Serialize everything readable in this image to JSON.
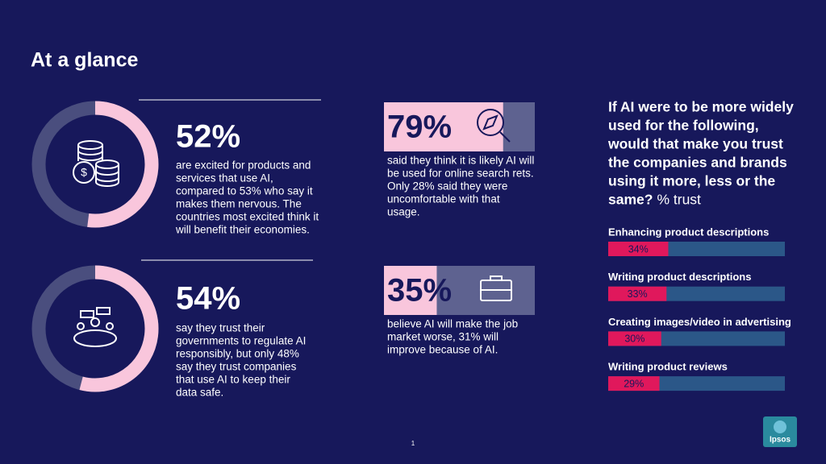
{
  "title": "At a glance",
  "donut_stats": [
    {
      "value": 52,
      "label": "52%",
      "lines": [
        "are excited for products and",
        "services that use AI,",
        "compared to 53% who say it",
        "makes them nervous. The",
        "countries most excited think it",
        "will benefit their economies."
      ]
    },
    {
      "value": 54,
      "label": "54%",
      "lines": [
        "say they trust their",
        "governments to regulate AI",
        "responsibly, but only 48%",
        "say they trust companies",
        "that use AI to keep their",
        "data safe."
      ]
    }
  ],
  "bar_stats": [
    {
      "value": 79,
      "label": "79%",
      "lines": [
        "said they think it is likely AI will",
        "be used for online search rets.",
        "Only 28% said they were",
        "uncomfortable with that",
        "usage."
      ]
    },
    {
      "value": 35,
      "label": "35%",
      "lines": [
        "believe AI will make the job",
        "market worse, 31% will",
        "improve because of AI."
      ]
    }
  ],
  "chart_data": {
    "type": "bar",
    "title_lines": [
      "If AI were to be more widely",
      "used for the following,",
      "would that make you trust",
      "the companies and brands",
      "using it more, less or the",
      "same?"
    ],
    "title_suffix": "% trust",
    "categories": [
      "Enhancing product descriptions",
      "Writing product descriptions",
      "Creating images/video in advertising",
      "Writing product reviews"
    ],
    "values": [
      34,
      33,
      30,
      29
    ],
    "value_labels": [
      "34%",
      "33%",
      "30%",
      "29%"
    ],
    "xlim": [
      0,
      100
    ],
    "color": "#e0185c"
  },
  "page_number": "1",
  "logo": "Ipsos"
}
